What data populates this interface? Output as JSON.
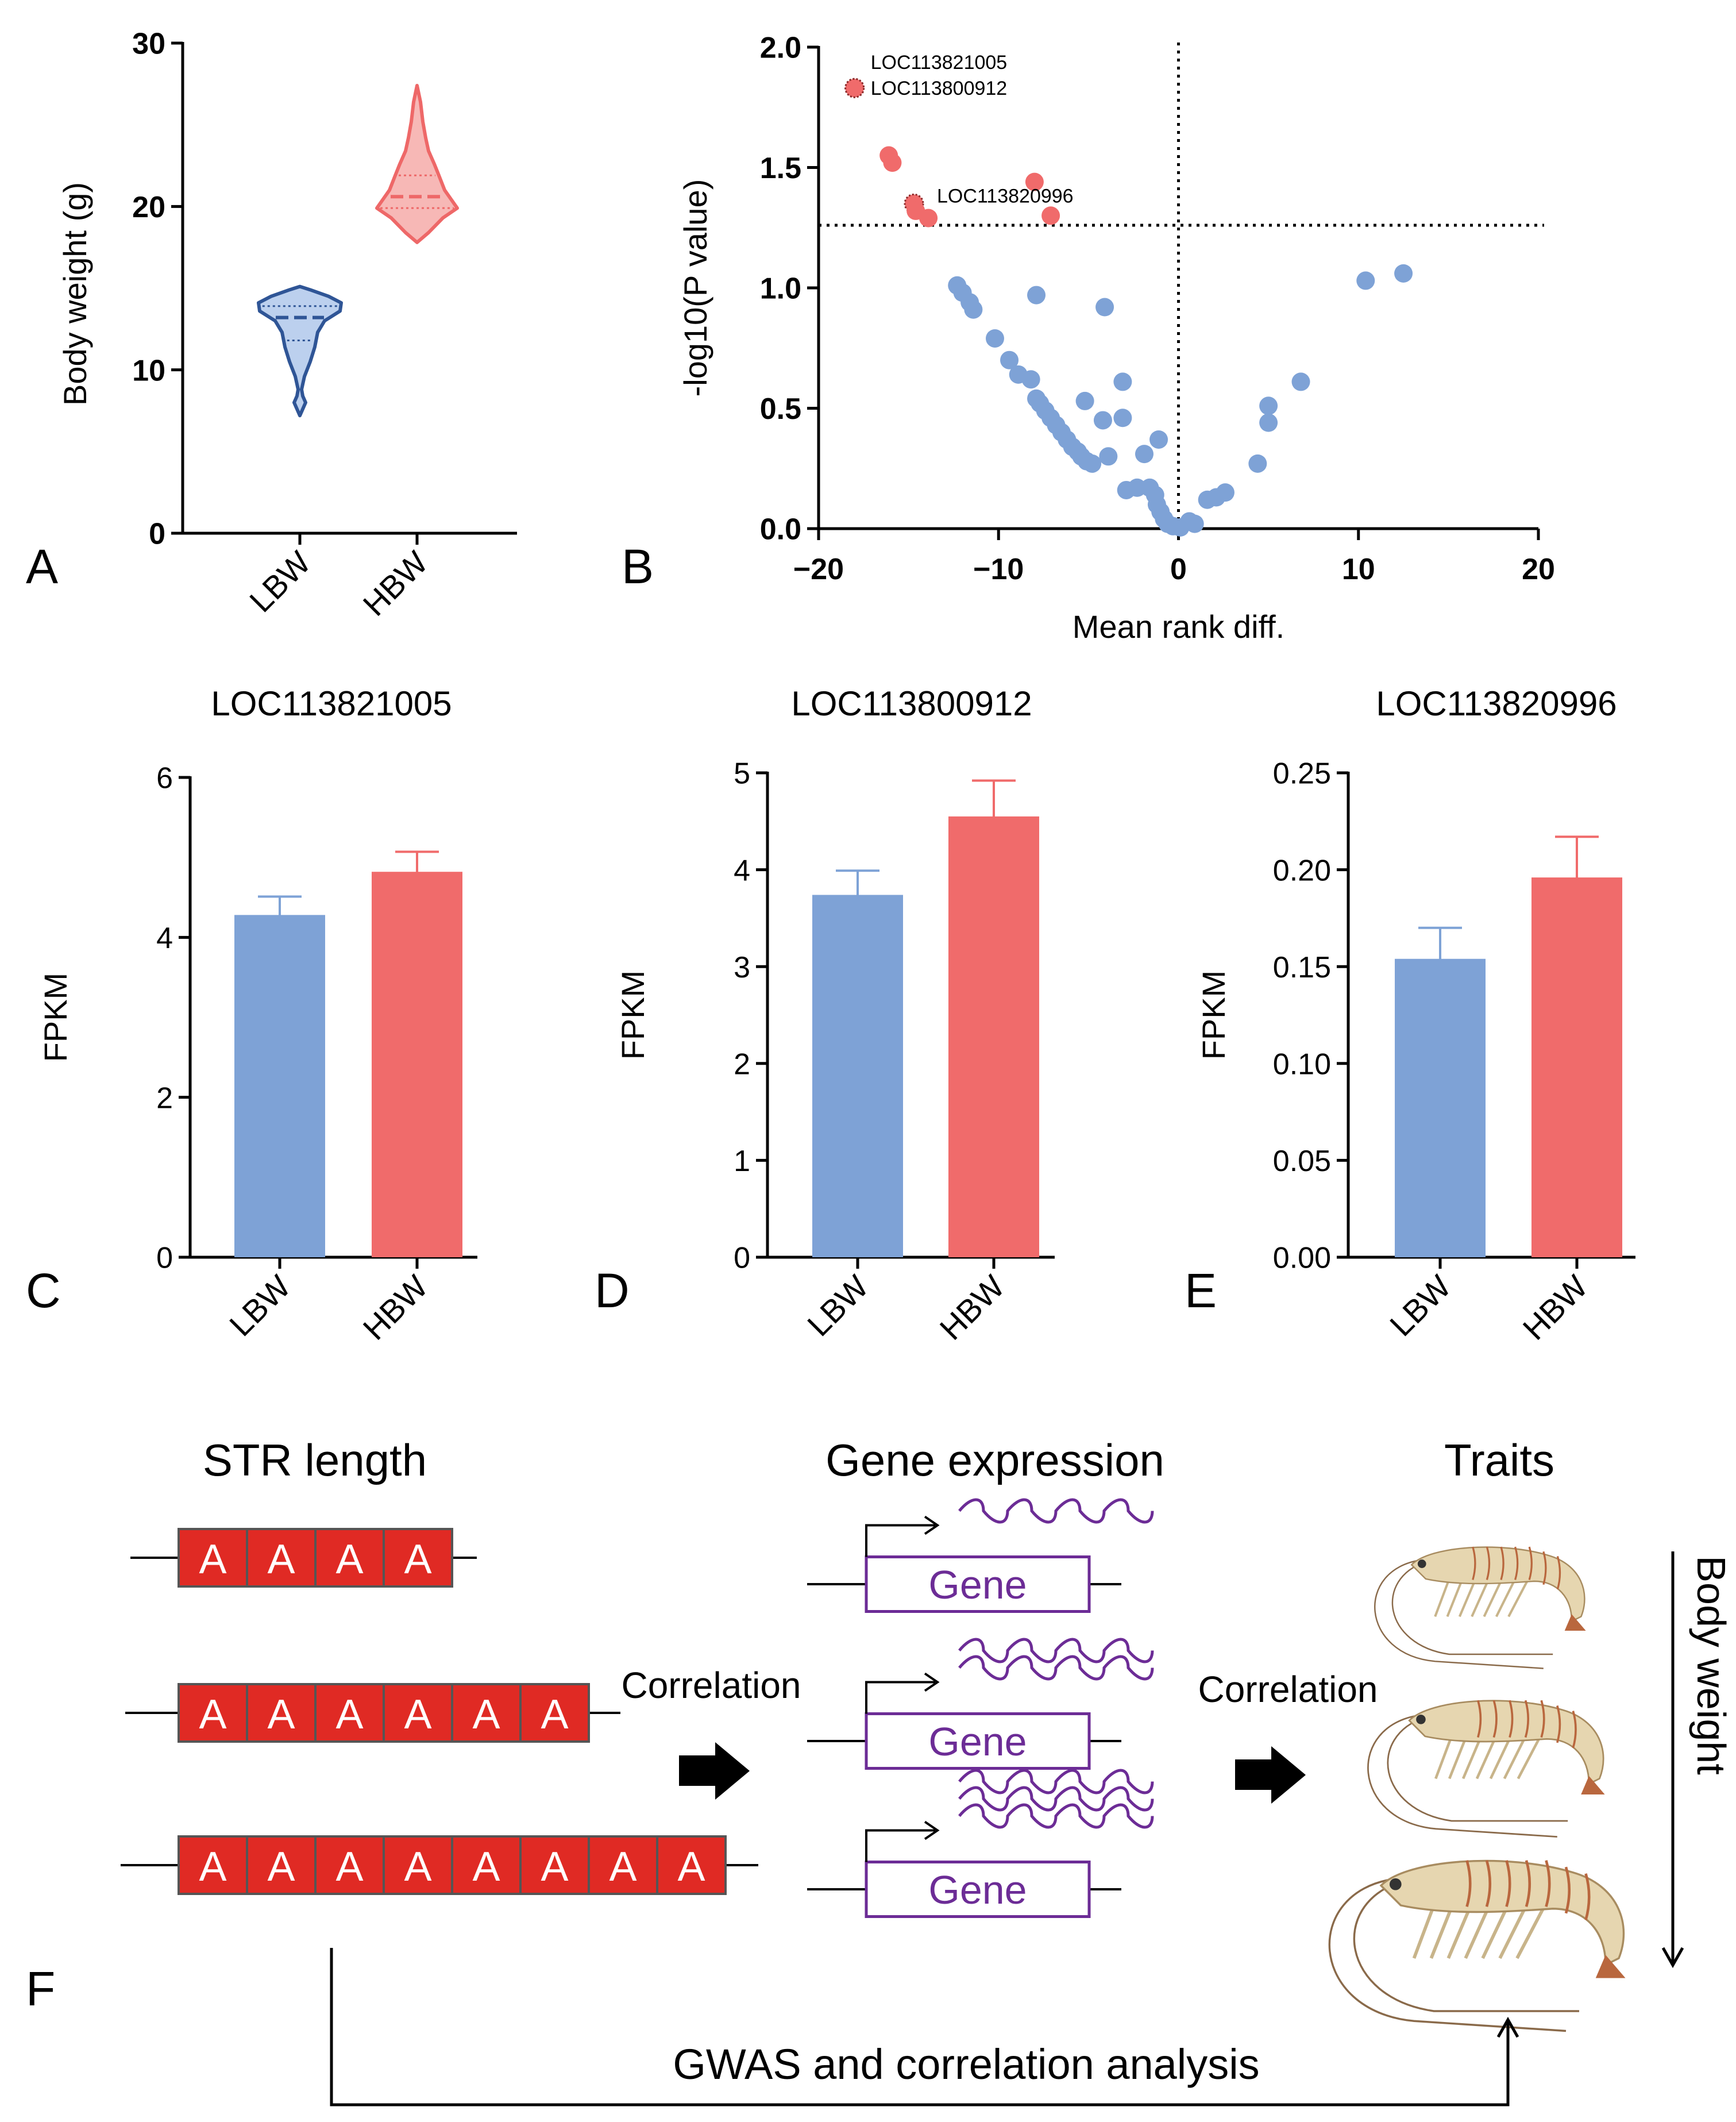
{
  "colors": {
    "blue": "#7ea2d6",
    "blue_dark": "#2f5596",
    "red": "#f06b6b",
    "red_dark": "#ee6868",
    "gene_purple": "#6c2c96",
    "str_red": "#e02a24",
    "shrimp_body": "#e6d6b0",
    "shrimp_stripe": "#b9673e"
  },
  "chart_data": [
    {
      "panel": "A",
      "type": "violin",
      "title": "",
      "xlabel": "",
      "ylabel": "Body weight (g)",
      "ylim": [
        0,
        30
      ],
      "yticks": [
        "0",
        "10",
        "20",
        "30"
      ],
      "categories": [
        "LBW",
        "HBW"
      ],
      "series": [
        {
          "name": "LBW",
          "min": 7.2,
          "q1": 11.8,
          "median": 13.2,
          "q3": 13.9,
          "max": 15.1,
          "color": "#7ea2d6"
        },
        {
          "name": "HBW",
          "min": 17.8,
          "q1": 19.9,
          "median": 20.6,
          "q3": 21.9,
          "max": 27.4,
          "color": "#f06b6b"
        }
      ]
    },
    {
      "panel": "B",
      "type": "scatter",
      "title": "",
      "xlabel": "Mean rank diff.",
      "ylabel": "-log10(P value)",
      "xlim": [
        -20,
        20
      ],
      "ylim": [
        0,
        2.0
      ],
      "xticks": [
        "−20",
        "−10",
        "0",
        "10",
        "20"
      ],
      "yticks": [
        "0.0",
        "0.5",
        "1.0",
        "1.5",
        "2.0"
      ],
      "threshold_y": 1.26,
      "threshold_x": 0,
      "significant": [
        {
          "x": -18.0,
          "y": 1.83,
          "label": "LOC113821005"
        },
        {
          "x": -18.0,
          "y": 1.83,
          "label": "LOC113800912"
        },
        {
          "x": -16.1,
          "y": 1.55
        },
        {
          "x": -15.9,
          "y": 1.52
        },
        {
          "x": -14.7,
          "y": 1.35,
          "label": "LOC113820996"
        },
        {
          "x": -14.6,
          "y": 1.32
        },
        {
          "x": -13.9,
          "y": 1.29
        },
        {
          "x": -8.0,
          "y": 1.44
        },
        {
          "x": -7.1,
          "y": 1.3
        }
      ],
      "nonsignificant": [
        {
          "x": -12.3,
          "y": 1.01
        },
        {
          "x": -12.0,
          "y": 0.98
        },
        {
          "x": -11.6,
          "y": 0.94
        },
        {
          "x": -11.4,
          "y": 0.91
        },
        {
          "x": -10.2,
          "y": 0.79
        },
        {
          "x": -9.4,
          "y": 0.7
        },
        {
          "x": -8.9,
          "y": 0.64
        },
        {
          "x": -8.2,
          "y": 0.62
        },
        {
          "x": -7.9,
          "y": 0.54
        },
        {
          "x": -7.7,
          "y": 0.52
        },
        {
          "x": -7.4,
          "y": 0.49
        },
        {
          "x": -7.1,
          "y": 0.46
        },
        {
          "x": -6.8,
          "y": 0.43
        },
        {
          "x": -6.5,
          "y": 0.4
        },
        {
          "x": -6.2,
          "y": 0.37
        },
        {
          "x": -5.9,
          "y": 0.34
        },
        {
          "x": -5.6,
          "y": 0.32
        },
        {
          "x": -5.4,
          "y": 0.3
        },
        {
          "x": -5.1,
          "y": 0.28
        },
        {
          "x": -4.8,
          "y": 0.27
        },
        {
          "x": -3.9,
          "y": 0.3
        },
        {
          "x": -5.2,
          "y": 0.53
        },
        {
          "x": -4.2,
          "y": 0.45
        },
        {
          "x": -3.1,
          "y": 0.46
        },
        {
          "x": -3.1,
          "y": 0.61
        },
        {
          "x": -1.1,
          "y": 0.37
        },
        {
          "x": -1.9,
          "y": 0.31
        },
        {
          "x": -4.1,
          "y": 0.92
        },
        {
          "x": -7.9,
          "y": 0.97
        },
        {
          "x": -2.9,
          "y": 0.16
        },
        {
          "x": -2.3,
          "y": 0.17
        },
        {
          "x": -1.6,
          "y": 0.17
        },
        {
          "x": -1.3,
          "y": 0.14
        },
        {
          "x": -1.2,
          "y": 0.1
        },
        {
          "x": -1.0,
          "y": 0.07
        },
        {
          "x": -0.8,
          "y": 0.04
        },
        {
          "x": -0.6,
          "y": 0.02
        },
        {
          "x": -0.3,
          "y": 0.01
        },
        {
          "x": 0.1,
          "y": 0.005
        },
        {
          "x": 0.6,
          "y": 0.03
        },
        {
          "x": 0.9,
          "y": 0.02
        },
        {
          "x": 1.6,
          "y": 0.12
        },
        {
          "x": 2.1,
          "y": 0.13
        },
        {
          "x": 2.6,
          "y": 0.15
        },
        {
          "x": 4.4,
          "y": 0.27
        },
        {
          "x": 5.0,
          "y": 0.44
        },
        {
          "x": 5.0,
          "y": 0.51
        },
        {
          "x": 6.8,
          "y": 0.61
        },
        {
          "x": 10.4,
          "y": 1.03
        },
        {
          "x": 12.5,
          "y": 1.06
        }
      ]
    },
    {
      "panel": "C",
      "type": "bar",
      "title": "LOC113821005",
      "xlabel": "",
      "ylabel": "FPKM",
      "ylim": [
        0,
        6
      ],
      "yticks": [
        "0",
        "2",
        "4",
        "6"
      ],
      "categories": [
        "LBW",
        "HBW"
      ],
      "values": [
        4.28,
        4.82
      ],
      "errors": [
        0.23,
        0.25
      ]
    },
    {
      "panel": "D",
      "type": "bar",
      "title": "LOC113800912",
      "xlabel": "",
      "ylabel": "FPKM",
      "ylim": [
        0,
        5
      ],
      "yticks": [
        "0",
        "1",
        "2",
        "3",
        "4",
        "5"
      ],
      "categories": [
        "LBW",
        "HBW"
      ],
      "values": [
        3.74,
        4.55
      ],
      "errors": [
        0.25,
        0.37
      ]
    },
    {
      "panel": "E",
      "type": "bar",
      "title": "LOC113820996",
      "xlabel": "",
      "ylabel": "FPKM",
      "ylim": [
        0,
        0.25
      ],
      "yticks": [
        "0.00",
        "0.05",
        "0.10",
        "0.15",
        "0.20",
        "0.25"
      ],
      "categories": [
        "LBW",
        "HBW"
      ],
      "values": [
        0.154,
        0.196
      ],
      "errors": [
        0.016,
        0.021
      ]
    }
  ],
  "panel_labels": {
    "a": "A",
    "b": "B",
    "c": "C",
    "d": "D",
    "e": "E",
    "f": "F"
  },
  "diagram": {
    "str_heading": "STR length",
    "expression_heading": "Gene expression",
    "traits_heading": "Traits",
    "repeat_unit": "A",
    "repeat_counts": [
      4,
      6,
      8
    ],
    "gene_label": "Gene",
    "correlation_label_1": "Correlation",
    "correlation_label_2": "Correlation",
    "body_weight_label": "Body weight",
    "gwas_label": "GWAS and correlation analysis"
  }
}
